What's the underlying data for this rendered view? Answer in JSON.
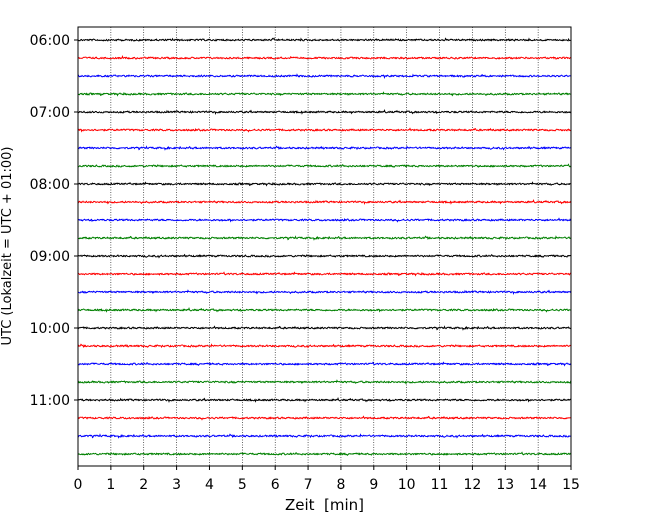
{
  "chart_data": {
    "type": "line",
    "title": "",
    "xlabel": "Zeit  [min]",
    "ylabel": "UTC (Lokalzeit = UTC + 01:00)",
    "xlim": [
      0,
      15
    ],
    "xticks": [
      "0",
      "1",
      "2",
      "3",
      "4",
      "5",
      "6",
      "7",
      "8",
      "9",
      "10",
      "11",
      "12",
      "13",
      "14",
      "15"
    ],
    "yticks": [
      "06:00",
      "07:00",
      "08:00",
      "09:00",
      "10:00",
      "11:00"
    ],
    "trace_interval_minutes": 15,
    "start_time": "06:00",
    "trace_count": 24,
    "colors": [
      "#000000",
      "#ff0000",
      "#0000ff",
      "#008000"
    ],
    "vertical_gridlines": true,
    "gridline_style": "dotted"
  }
}
